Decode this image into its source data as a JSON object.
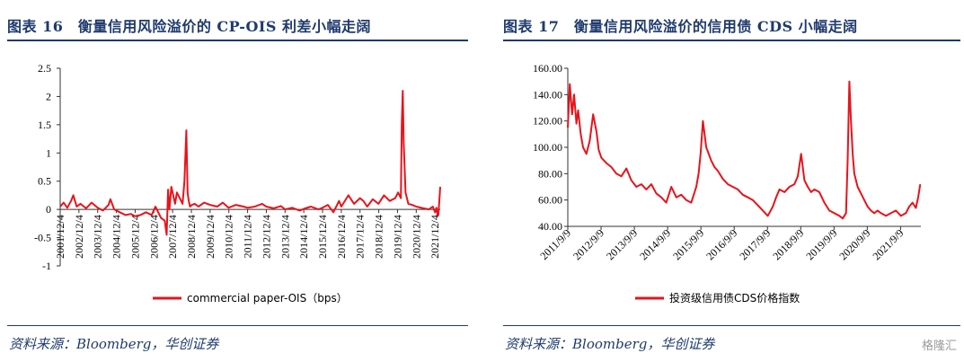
{
  "watermark": "格隆汇",
  "figures": [
    {
      "title": "图表 16　衡量信用风险溢价的 CP-OIS 利差小幅走阔",
      "source": "资料来源：Bloomberg，华创证券",
      "chart_data": {
        "type": "line",
        "title": "衡量信用风险溢价的 CP-OIS 利差小幅走阔",
        "xlabel": "",
        "ylabel": "",
        "ylim": [
          -1,
          2.5
        ],
        "yticks": [
          -1,
          -0.5,
          0,
          0.5,
          1,
          1.5,
          2,
          2.5
        ],
        "ytick_labels": [
          "-1",
          "-0.5",
          "0",
          "0.5",
          "1",
          "1.5",
          "2",
          "2.5"
        ],
        "xlim": [
          2001.92,
          2022.2
        ],
        "xtick_labels": [
          "2001/12/4",
          "2002/12/4",
          "2003/12/4",
          "2004/12/4",
          "2005/12/4",
          "2006/12/4",
          "2007/12/4",
          "2008/12/4",
          "2009/12/4",
          "2010/12/4",
          "2011/12/4",
          "2012/12/4",
          "2013/12/4",
          "2014/12/4",
          "2015/12/4",
          "2016/12/4",
          "2017/12/4",
          "2018/12/4",
          "2019/12/4",
          "2020/12/4",
          "2021/12/4"
        ],
        "xtick_values": [
          2001.92,
          2002.92,
          2003.92,
          2004.92,
          2005.92,
          2006.92,
          2007.92,
          2008.92,
          2009.92,
          2010.92,
          2011.92,
          2012.92,
          2013.92,
          2014.92,
          2015.92,
          2016.92,
          2017.92,
          2018.92,
          2019.92,
          2020.92,
          2021.92
        ],
        "series": [
          {
            "name": "commercial paper-OIS（bps）",
            "color": "#e8131b",
            "x": [
              2001.92,
              2002.1,
              2002.3,
              2002.5,
              2002.62,
              2002.8,
              2003.0,
              2003.3,
              2003.6,
              2003.92,
              2004.2,
              2004.5,
              2004.6,
              2004.8,
              2005.1,
              2005.4,
              2005.7,
              2005.92,
              2006.2,
              2006.5,
              2006.8,
              2007.0,
              2007.3,
              2007.5,
              2007.6,
              2007.68,
              2007.75,
              2007.85,
              2007.95,
              2008.05,
              2008.15,
              2008.3,
              2008.45,
              2008.55,
              2008.65,
              2008.72,
              2008.78,
              2008.85,
              2008.95,
              2009.1,
              2009.3,
              2009.6,
              2009.92,
              2010.3,
              2010.6,
              2010.9,
              2011.3,
              2011.7,
              2011.92,
              2012.3,
              2012.7,
              2012.92,
              2013.3,
              2013.7,
              2013.92,
              2014.3,
              2014.7,
              2014.92,
              2015.3,
              2015.7,
              2015.92,
              2016.2,
              2016.5,
              2016.8,
              2016.92,
              2017.3,
              2017.6,
              2017.92,
              2018.1,
              2018.3,
              2018.6,
              2018.9,
              2019.2,
              2019.5,
              2019.8,
              2019.95,
              2020.1,
              2020.15,
              2020.2,
              2020.25,
              2020.35,
              2020.5,
              2020.7,
              2020.92,
              2021.3,
              2021.6,
              2021.8,
              2021.92,
              2022.0,
              2022.05,
              2022.1,
              2022.15,
              2022.2
            ],
            "values": [
              0.05,
              0.12,
              0.03,
              0.15,
              0.25,
              0.05,
              0.1,
              0.02,
              0.12,
              0.03,
              -0.02,
              0.08,
              0.18,
              0.0,
              -0.05,
              -0.1,
              -0.08,
              -0.12,
              -0.1,
              -0.05,
              -0.1,
              0.05,
              -0.15,
              -0.2,
              -0.45,
              0.35,
              0.0,
              0.4,
              0.25,
              0.1,
              0.3,
              0.2,
              0.1,
              0.5,
              1.4,
              0.3,
              0.15,
              0.05,
              0.08,
              0.1,
              0.05,
              0.12,
              0.08,
              0.05,
              0.12,
              0.03,
              0.08,
              0.05,
              0.03,
              0.05,
              0.1,
              0.05,
              0.02,
              0.06,
              0.0,
              0.03,
              -0.02,
              0.01,
              0.05,
              0.0,
              0.03,
              0.08,
              -0.05,
              0.15,
              0.05,
              0.25,
              0.1,
              0.2,
              0.15,
              0.05,
              0.18,
              0.1,
              0.25,
              0.15,
              0.2,
              0.3,
              0.2,
              1.5,
              2.1,
              1.2,
              0.3,
              0.1,
              0.08,
              0.05,
              0.02,
              0.0,
              0.05,
              -0.05,
              0.03,
              -0.1,
              -0.1,
              0.15,
              0.4
            ]
          }
        ],
        "legend_position": "bottom-center"
      }
    },
    {
      "title": "图表 17　衡量信用风险溢价的信用债 CDS 小幅走阔",
      "source": "资料来源：Bloomberg，华创证券",
      "chart_data": {
        "type": "line",
        "title": "衡量信用风险溢价的信用债 CDS 小幅走阔",
        "xlabel": "",
        "ylabel": "",
        "ylim": [
          40,
          160
        ],
        "yticks": [
          40,
          60,
          80,
          100,
          120,
          140,
          160
        ],
        "ytick_labels": [
          "40.00",
          "60.00",
          "80.00",
          "100.00",
          "120.00",
          "140.00",
          "160.00"
        ],
        "xlim": [
          2011.69,
          2022.3
        ],
        "xtick_labels": [
          "2011/9/9",
          "2012/9/9",
          "2013/9/9",
          "2014/9/9",
          "2015/9/9",
          "2016/9/9",
          "2017/9/9",
          "2018/9/9",
          "2019/9/9",
          "2020/9/9",
          "2021/9/9"
        ],
        "xtick_values": [
          2011.69,
          2012.69,
          2013.69,
          2014.69,
          2015.69,
          2016.69,
          2017.69,
          2018.69,
          2019.69,
          2020.69,
          2021.69
        ],
        "series": [
          {
            "name": "投资级信用债CDS价格指数",
            "color": "#e8131b",
            "x": [
              2011.69,
              2011.75,
              2011.82,
              2011.88,
              2011.95,
              2012.0,
              2012.08,
              2012.15,
              2012.25,
              2012.35,
              2012.45,
              2012.55,
              2012.62,
              2012.7,
              2012.85,
              2013.0,
              2013.15,
              2013.3,
              2013.45,
              2013.6,
              2013.75,
              2013.9,
              2014.05,
              2014.2,
              2014.35,
              2014.5,
              2014.65,
              2014.8,
              2014.95,
              2015.1,
              2015.25,
              2015.4,
              2015.55,
              2015.62,
              2015.68,
              2015.75,
              2015.85,
              2016.0,
              2016.1,
              2016.2,
              2016.35,
              2016.5,
              2016.65,
              2016.8,
              2016.95,
              2017.1,
              2017.25,
              2017.4,
              2017.55,
              2017.7,
              2017.85,
              2017.95,
              2018.05,
              2018.2,
              2018.35,
              2018.5,
              2018.6,
              2018.7,
              2018.8,
              2018.9,
              2019.0,
              2019.1,
              2019.25,
              2019.4,
              2019.55,
              2019.7,
              2019.85,
              2019.95,
              2020.05,
              2020.1,
              2020.15,
              2020.2,
              2020.25,
              2020.3,
              2020.4,
              2020.5,
              2020.6,
              2020.7,
              2020.8,
              2020.9,
              2021.0,
              2021.1,
              2021.25,
              2021.4,
              2021.55,
              2021.7,
              2021.85,
              2021.95,
              2022.05,
              2022.15,
              2022.22,
              2022.28
            ],
            "values": [
              115,
              148,
              125,
              140,
              118,
              128,
              110,
              100,
              95,
              105,
              125,
              112,
              98,
              92,
              88,
              85,
              80,
              78,
              84,
              75,
              70,
              72,
              68,
              72,
              65,
              62,
              58,
              70,
              62,
              64,
              60,
              58,
              70,
              80,
              95,
              120,
              100,
              90,
              85,
              82,
              76,
              72,
              70,
              68,
              64,
              62,
              60,
              56,
              52,
              48,
              55,
              62,
              68,
              66,
              70,
              72,
              78,
              95,
              75,
              70,
              66,
              68,
              66,
              58,
              52,
              50,
              48,
              46,
              50,
              90,
              150,
              120,
              95,
              80,
              70,
              65,
              60,
              55,
              52,
              50,
              52,
              50,
              48,
              50,
              52,
              48,
              50,
              55,
              58,
              54,
              62,
              72
            ]
          }
        ],
        "legend_position": "bottom-center"
      }
    }
  ]
}
